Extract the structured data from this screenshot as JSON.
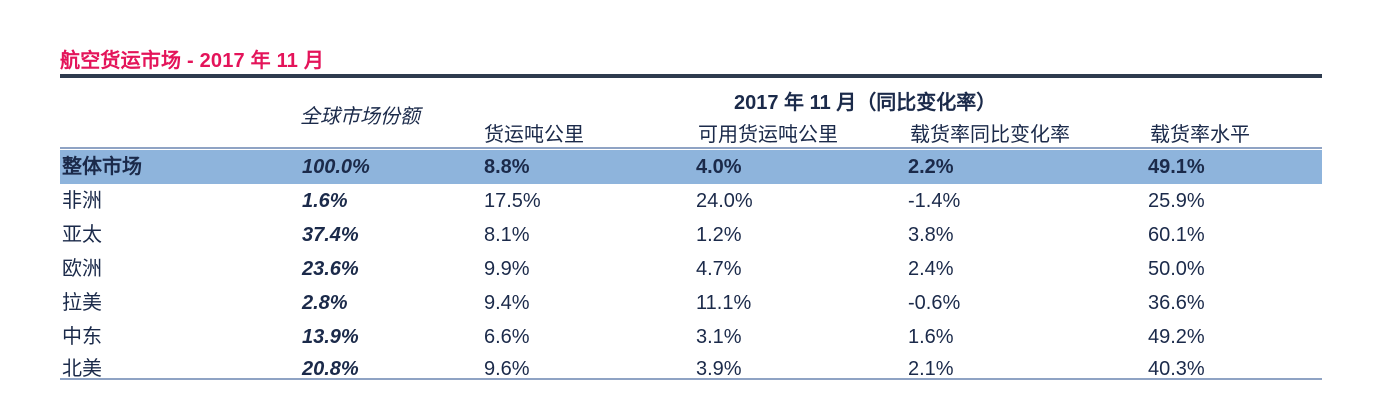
{
  "title": "航空货运市场 - 2017 年 11 月",
  "header": {
    "share_label": "全球市场份额",
    "group_label": "2017 年 11 月（同比变化率）",
    "columns": [
      "货运吨公里",
      "可用货运吨公里",
      "载货率同比变化率",
      "载货率水平"
    ]
  },
  "rows": [
    {
      "region": "整体市场",
      "share": "100.0%",
      "ftk": "8.8%",
      "aftk": "4.0%",
      "lf_change": "2.2%",
      "lf_level": "49.1%"
    },
    {
      "region": "非洲",
      "share": "1.6%",
      "ftk": "17.5%",
      "aftk": "24.0%",
      "lf_change": "-1.4%",
      "lf_level": "25.9%"
    },
    {
      "region": "亚太",
      "share": "37.4%",
      "ftk": "8.1%",
      "aftk": "1.2%",
      "lf_change": "3.8%",
      "lf_level": "60.1%"
    },
    {
      "region": "欧洲",
      "share": "23.6%",
      "ftk": "9.9%",
      "aftk": "4.7%",
      "lf_change": "2.4%",
      "lf_level": "50.0%"
    },
    {
      "region": "拉美",
      "share": "2.8%",
      "ftk": "9.4%",
      "aftk": "11.1%",
      "lf_change": "-0.6%",
      "lf_level": "36.6%"
    },
    {
      "region": "中东",
      "share": "13.9%",
      "ftk": "6.6%",
      "aftk": "3.1%",
      "lf_change": "1.6%",
      "lf_level": "49.2%"
    },
    {
      "region": "北美",
      "share": "20.8%",
      "ftk": "9.6%",
      "aftk": "3.9%",
      "lf_change": "2.1%",
      "lf_level": "40.3%"
    }
  ],
  "colors": {
    "title": "#e4145a",
    "total_row_bg": "#8eb4dc",
    "rule": "#2e3b4e"
  }
}
